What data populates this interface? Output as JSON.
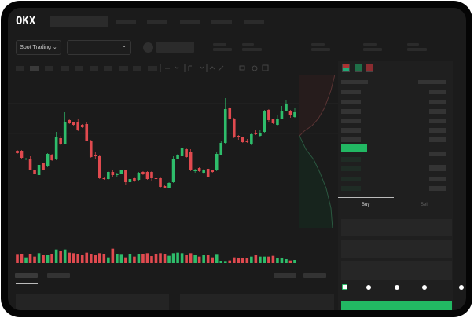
{
  "logo": "OKX",
  "toolbar": {
    "market_select": "Spot Trading",
    "pair_select": ""
  },
  "orderbook": {
    "view_icons": [
      "orderbook-both-icon",
      "orderbook-bids-icon",
      "orderbook-asks-icon"
    ]
  },
  "trade": {
    "tabs": [
      {
        "label": "Buy",
        "active": true
      },
      {
        "label": "Sell",
        "active": false
      }
    ],
    "slider_percent": 0
  },
  "colors": {
    "up": "#2ebd6b",
    "down": "#e04a4f",
    "background": "#1b1b1b",
    "accent": "#20b862"
  },
  "chart_data": {
    "type": "candlestick",
    "candles": [
      [
        68,
        65,
        69,
        64
      ],
      [
        68,
        59,
        69,
        58
      ],
      [
        57,
        58,
        59,
        56
      ],
      [
        58,
        44,
        61,
        43
      ],
      [
        43,
        39,
        44,
        38
      ],
      [
        37,
        50,
        51,
        35
      ],
      [
        52,
        44,
        53,
        43
      ],
      [
        48,
        64,
        65,
        47
      ],
      [
        63,
        56,
        64,
        55
      ],
      [
        57,
        85,
        92,
        56
      ],
      [
        84,
        76,
        87,
        75
      ],
      [
        77,
        105,
        117,
        76
      ],
      [
        107,
        103,
        108,
        102
      ],
      [
        104,
        101,
        105,
        100
      ],
      [
        104,
        94,
        109,
        93
      ],
      [
        101,
        98,
        102,
        97
      ],
      [
        102,
        81,
        104,
        80
      ],
      [
        81,
        60,
        82,
        59
      ],
      [
        63,
        61,
        66,
        58
      ],
      [
        61,
        33,
        62,
        32
      ],
      [
        33,
        32,
        35,
        31
      ],
      [
        32,
        41,
        42,
        31
      ],
      [
        41,
        37,
        44,
        35
      ],
      [
        37,
        38,
        40,
        34
      ],
      [
        39,
        43,
        44,
        38
      ],
      [
        43,
        28,
        44,
        25
      ],
      [
        28,
        32,
        33,
        27
      ],
      [
        33,
        29,
        34,
        28
      ],
      [
        31,
        40,
        41,
        30
      ],
      [
        41,
        38,
        42,
        37
      ],
      [
        41,
        32,
        42,
        31
      ],
      [
        41,
        33,
        42,
        30
      ],
      [
        33,
        32,
        34,
        31
      ],
      [
        33,
        22,
        34,
        21
      ],
      [
        23,
        21,
        24,
        20
      ],
      [
        21,
        27,
        28,
        20
      ],
      [
        28,
        57,
        61,
        27
      ],
      [
        58,
        62,
        64,
        57
      ],
      [
        61,
        72,
        74,
        60
      ],
      [
        70,
        60,
        71,
        59
      ],
      [
        66,
        44,
        70,
        42
      ],
      [
        42,
        43,
        45,
        40
      ],
      [
        46,
        42,
        47,
        41
      ],
      [
        40,
        44,
        45,
        39
      ],
      [
        45,
        35,
        47,
        34
      ],
      [
        43,
        41,
        44,
        40
      ],
      [
        43,
        64,
        66,
        42
      ],
      [
        63,
        78,
        80,
        62
      ],
      [
        78,
        121,
        135,
        77
      ],
      [
        122,
        109,
        124,
        107
      ],
      [
        109,
        85,
        110,
        84
      ],
      [
        87,
        85,
        88,
        82
      ],
      [
        85,
        79,
        86,
        78
      ],
      [
        80,
        79,
        83,
        78
      ],
      [
        76,
        89,
        91,
        75
      ],
      [
        91,
        89,
        95,
        88
      ],
      [
        87,
        91,
        95,
        86
      ],
      [
        92,
        118,
        120,
        91
      ],
      [
        120,
        107,
        121,
        105
      ],
      [
        108,
        103,
        109,
        102
      ],
      [
        101,
        109,
        113,
        100
      ],
      [
        109,
        119,
        125,
        108
      ],
      [
        119,
        128,
        133,
        118
      ],
      [
        119,
        113,
        120,
        110
      ],
      [
        111,
        117,
        123,
        110
      ]
    ],
    "volume": [
      32,
      35,
      22,
      33,
      25,
      38,
      30,
      30,
      33,
      52,
      45,
      52,
      40,
      38,
      35,
      30,
      40,
      35,
      30,
      38,
      35,
      22,
      55,
      35,
      32,
      22,
      35,
      25,
      35,
      35,
      38,
      27,
      35,
      38,
      35,
      28,
      38,
      40,
      38,
      30,
      38,
      30,
      25,
      30,
      30,
      22,
      32,
      8,
      5,
      10,
      22,
      20,
      20,
      20,
      25,
      30,
      25,
      25,
      25,
      28,
      20,
      18,
      15,
      10,
      12
    ]
  }
}
